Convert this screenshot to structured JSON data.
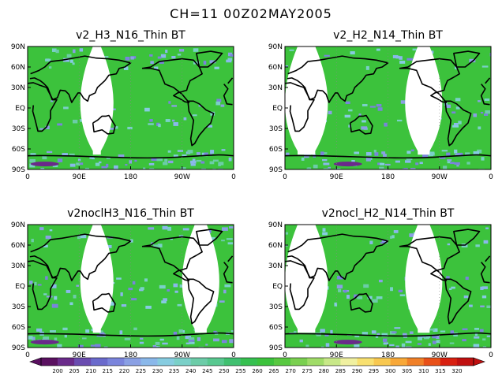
{
  "title": "CH=11   00Z02MAY2005",
  "palette": {
    "land_outline": "#000000",
    "no_data": "#ffffff",
    "dominant": "#3cc23c"
  },
  "chart_data": [
    {
      "type": "heatmap",
      "title": "v2_H3_N16_Thin BT",
      "y_ticks": [
        "90N",
        "60N",
        "30N",
        "EQ",
        "30S",
        "60S",
        "90S"
      ],
      "x_ticks": [
        "0",
        "90E",
        "180",
        "90W",
        "0"
      ],
      "xlim": [
        0,
        360
      ],
      "ylim": [
        -90,
        90
      ],
      "no_data_lon_ranges": [
        [
          92,
          150
        ]
      ],
      "dominant_value_range": [
        255,
        270
      ]
    },
    {
      "type": "heatmap",
      "title": "v2_H2_N14_Thin BT",
      "y_ticks": [
        "90N",
        "60N",
        "30N",
        "EQ",
        "30S",
        "60S",
        "90S"
      ],
      "x_ticks": [
        "0",
        "90E",
        "180",
        "90W",
        "0"
      ],
      "xlim": [
        0,
        360
      ],
      "ylim": [
        -90,
        90
      ],
      "no_data_lon_ranges": [
        [
          0,
          75
        ],
        [
          210,
          275
        ]
      ],
      "dominant_value_range": [
        255,
        270
      ]
    },
    {
      "type": "heatmap",
      "title": "v2noclH3_N16_Thin BT",
      "y_ticks": [
        "90N",
        "60N",
        "30N",
        "EQ",
        "30S",
        "60S",
        "90S"
      ],
      "x_ticks": [
        "0",
        "90E",
        "180",
        "90W",
        "0"
      ],
      "xlim": [
        0,
        360
      ],
      "ylim": [
        -90,
        90
      ],
      "no_data_lon_ranges": [
        [
          92,
          150
        ],
        [
          270,
          335
        ]
      ],
      "dominant_value_range": [
        255,
        270
      ]
    },
    {
      "type": "heatmap",
      "title": "v2nocl_H2_N14_Thin BT",
      "y_ticks": [
        "90N",
        "60N",
        "30N",
        "EQ",
        "30S",
        "60S",
        "90S"
      ],
      "x_ticks": [
        "0",
        "90E",
        "180",
        "90W",
        "0"
      ],
      "xlim": [
        0,
        360
      ],
      "ylim": [
        -90,
        90
      ],
      "no_data_lon_ranges": [
        [
          0,
          75
        ],
        [
          210,
          275
        ]
      ],
      "dominant_value_range": [
        255,
        270
      ]
    }
  ],
  "colorbar": {
    "labels": [
      "200",
      "205",
      "210",
      "215",
      "220",
      "225",
      "230",
      "235",
      "240",
      "245",
      "250",
      "255",
      "260",
      "265",
      "270",
      "275",
      "280",
      "285",
      "290",
      "295",
      "300",
      "305",
      "310",
      "315",
      "320"
    ],
    "colors": [
      "#5a1060",
      "#6a2a8a",
      "#6a4cb0",
      "#6a6acc",
      "#7a84dc",
      "#8aa0e4",
      "#8ab8ea",
      "#86cce0",
      "#7ad0c8",
      "#6ccca8",
      "#58c890",
      "#40c070",
      "#36c050",
      "#3cc23c",
      "#58c840",
      "#7ad050",
      "#a0dc68",
      "#c8e888",
      "#f0f0a0",
      "#f8e070",
      "#f8c850",
      "#f8a838",
      "#f08028",
      "#e85018",
      "#d82010",
      "#c01010"
    ]
  }
}
